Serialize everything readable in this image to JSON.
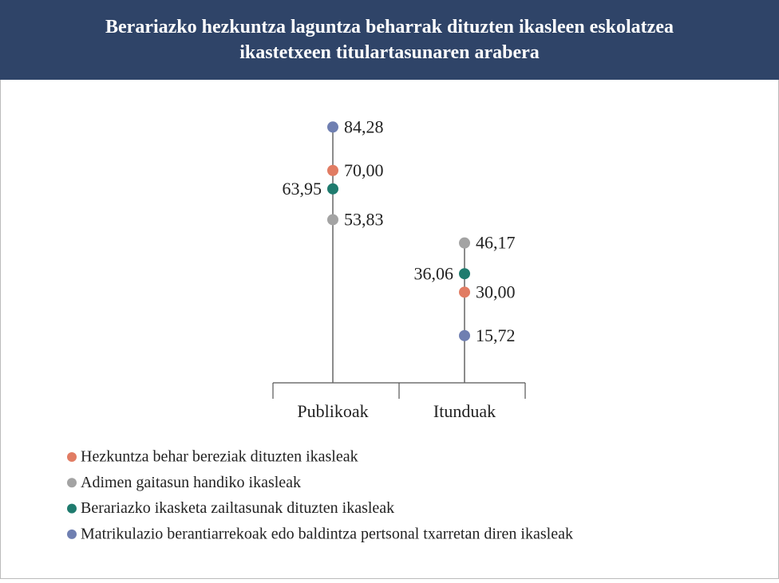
{
  "chart_data": {
    "type": "dot",
    "title": "Berariazko hezkuntza laguntza beharrak dituzten ikasleen eskolatzea ikastetxeen titulartasunaren arabera",
    "categories": [
      "Publikoak",
      "Itunduak"
    ],
    "ylim": [
      0,
      100
    ],
    "legend": "bottom-left",
    "series": [
      {
        "name": "Hezkuntza behar bereziak dituzten ikasleak",
        "color": "#e17c63",
        "values": [
          70.0,
          30.0
        ],
        "value_labels": [
          "70,00",
          "30,00"
        ]
      },
      {
        "name": "Adimen gaitasun handiko ikasleak",
        "color": "#a3a3a3",
        "values": [
          53.83,
          46.17
        ],
        "value_labels": [
          "53,83",
          "46,17"
        ]
      },
      {
        "name": "Berariazko ikasketa zailtasunak dituzten ikasleak",
        "color": "#1f7b6e",
        "values": [
          63.95,
          36.06
        ],
        "value_labels": [
          "63,95",
          "36,06"
        ]
      },
      {
        "name": "Matrikulazio berantiarrekoak edo baldintza pertsonal txarretan diren ikasleak",
        "color": "#6f7fb1",
        "values": [
          84.28,
          15.72
        ],
        "value_labels": [
          "84,28",
          "15,72"
        ]
      }
    ]
  }
}
